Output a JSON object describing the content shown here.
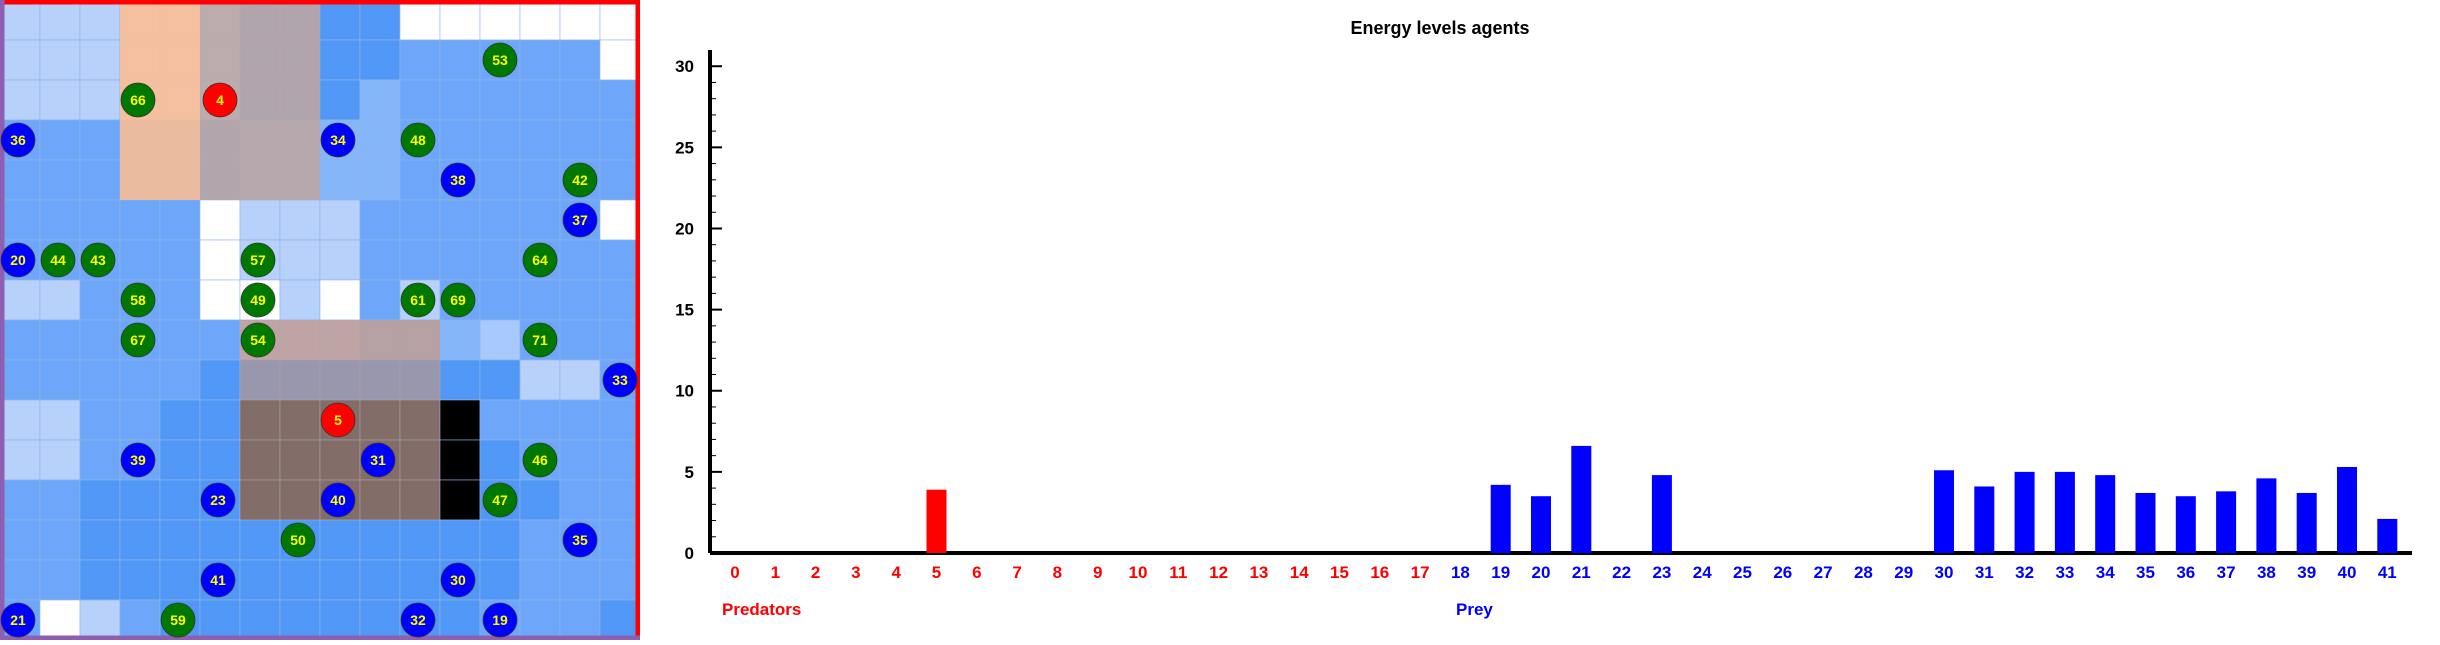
{
  "grid": {
    "rows": 16,
    "cols": 16,
    "cells": [
      "1111113333000000",
      "1111113333222220",
      "1111113334222222",
      "2222224444222222",
      "2222224444222222",
      "2222201112222220",
      "2222201112222222",
      "1122200102122222",
      "2222221114445222",
      "2222233333333112",
      "1122336666662222",
      "1122336666663222",
      "2233336666663322",
      "2233333333333222",
      "2233333333333222",
      "2012333333332223"
    ],
    "colors": {
      "0": "#ffffff",
      "1": "#b7d1fb",
      "2": "#6ea7f9",
      "3": "#5198f6",
      "4": "#86b6fa",
      "5": "#a8c9fc"
    },
    "zones": [
      {
        "id": "zone-top-light",
        "color": "#e7e7e7"
      },
      {
        "id": "zone-top-orange",
        "color": "#ffb685"
      },
      {
        "id": "zone-top-brown",
        "color": "#b49790"
      },
      {
        "id": "zone-bottom",
        "color": "#b49790"
      }
    ],
    "agents": [
      {
        "id": "53",
        "kind": "prey-green"
      },
      {
        "id": "66",
        "kind": "prey-green"
      },
      {
        "id": "4",
        "kind": "predator"
      },
      {
        "id": "36",
        "kind": "prey-blue"
      },
      {
        "id": "34",
        "kind": "prey-blue"
      },
      {
        "id": "48",
        "kind": "prey-green"
      },
      {
        "id": "38",
        "kind": "prey-blue"
      },
      {
        "id": "42",
        "kind": "prey-green"
      },
      {
        "id": "37",
        "kind": "prey-blue"
      },
      {
        "id": "20",
        "kind": "prey-blue"
      },
      {
        "id": "44",
        "kind": "prey-green"
      },
      {
        "id": "43",
        "kind": "prey-green"
      },
      {
        "id": "57",
        "kind": "prey-green"
      },
      {
        "id": "64",
        "kind": "prey-green"
      },
      {
        "id": "58",
        "kind": "prey-green"
      },
      {
        "id": "49",
        "kind": "prey-green"
      },
      {
        "id": "61",
        "kind": "prey-green"
      },
      {
        "id": "69",
        "kind": "prey-green"
      },
      {
        "id": "67",
        "kind": "prey-green"
      },
      {
        "id": "54",
        "kind": "prey-green"
      },
      {
        "id": "71",
        "kind": "prey-green"
      },
      {
        "id": "33",
        "kind": "prey-blue"
      },
      {
        "id": "5",
        "kind": "predator"
      },
      {
        "id": "39",
        "kind": "prey-blue"
      },
      {
        "id": "31",
        "kind": "prey-blue"
      },
      {
        "id": "46",
        "kind": "prey-green"
      },
      {
        "id": "23",
        "kind": "prey-blue"
      },
      {
        "id": "40",
        "kind": "prey-blue"
      },
      {
        "id": "47",
        "kind": "prey-green"
      },
      {
        "id": "50",
        "kind": "prey-green"
      },
      {
        "id": "35",
        "kind": "prey-blue"
      },
      {
        "id": "41",
        "kind": "prey-blue"
      },
      {
        "id": "30",
        "kind": "prey-blue"
      },
      {
        "id": "21",
        "kind": "prey-blue"
      },
      {
        "id": "59",
        "kind": "prey-green"
      },
      {
        "id": "32",
        "kind": "prey-blue"
      },
      {
        "id": "19",
        "kind": "prey-blue"
      }
    ],
    "agent_colors": {
      "predator": "#ff0000",
      "prey-green": "#007800",
      "prey-blue": "#0000ff",
      "label": "#ffff00"
    }
  },
  "chart_data": {
    "type": "bar",
    "title": "Energy levels agents",
    "xlabel": "",
    "ylabel": "",
    "ylim": [
      0,
      31
    ],
    "yticks": [
      0,
      5,
      10,
      15,
      20,
      25,
      30
    ],
    "categories": [
      "0",
      "1",
      "2",
      "3",
      "4",
      "5",
      "6",
      "7",
      "8",
      "9",
      "10",
      "11",
      "12",
      "13",
      "14",
      "15",
      "16",
      "17",
      "18",
      "19",
      "20",
      "21",
      "22",
      "23",
      "24",
      "25",
      "26",
      "27",
      "28",
      "29",
      "30",
      "31",
      "32",
      "33",
      "34",
      "35",
      "36",
      "37",
      "38",
      "39",
      "40",
      "41"
    ],
    "values": [
      0,
      0,
      0,
      0,
      0,
      3.9,
      0,
      0,
      0,
      0,
      0,
      0,
      0,
      0,
      0,
      0,
      0,
      0,
      0,
      4.2,
      3.5,
      6.6,
      0,
      4.8,
      0,
      0,
      0,
      0,
      0,
      0,
      5.1,
      4.1,
      5.0,
      5.0,
      4.8,
      3.7,
      3.5,
      3.8,
      4.6,
      3.7,
      5.3,
      2.1
    ],
    "groups": [
      {
        "name": "Predators",
        "from": 0,
        "to": 17,
        "color": "#ff0000"
      },
      {
        "name": "Prey",
        "from": 18,
        "to": 41,
        "color": "#0000ff"
      }
    ]
  }
}
